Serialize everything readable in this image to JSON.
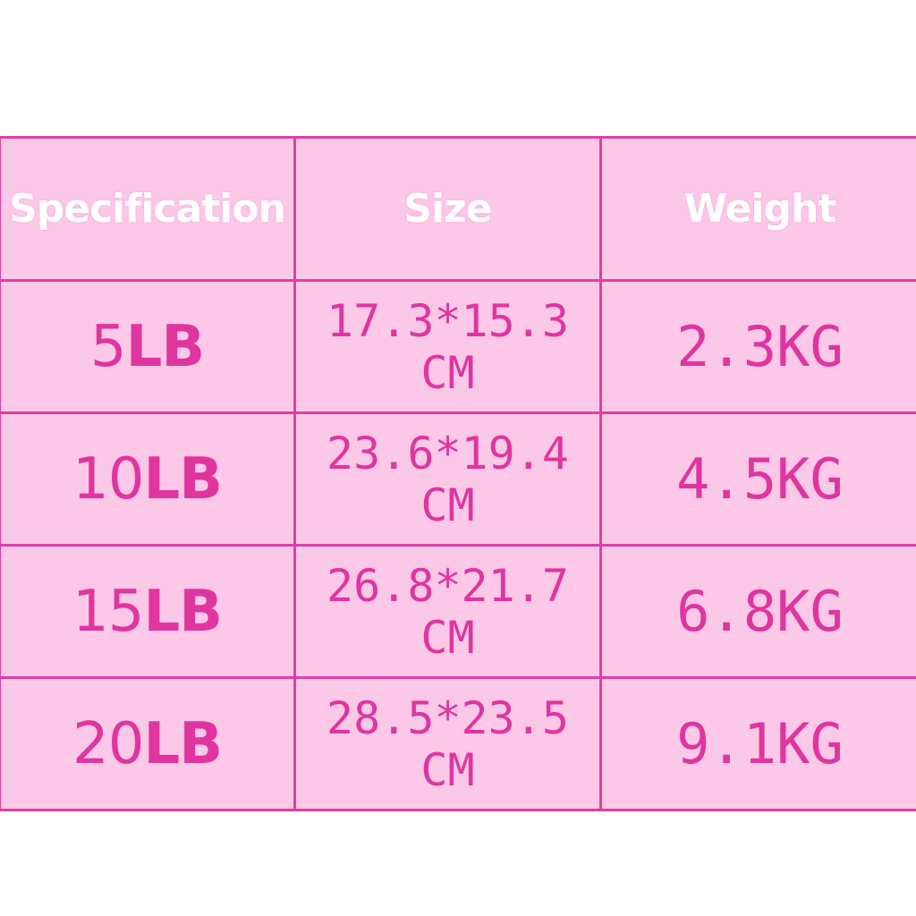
{
  "table": {
    "headers": {
      "specification": "Specification",
      "size": "Size",
      "weight": "Weight"
    },
    "rows": [
      {
        "spec_num": "5",
        "spec_unit": "LB",
        "size_dims": "17.3*15.3",
        "size_unit": "CM",
        "weight": "2.3KG"
      },
      {
        "spec_num": "10",
        "spec_unit": "LB",
        "size_dims": "23.6*19.4",
        "size_unit": "CM",
        "weight": "4.5KG"
      },
      {
        "spec_num": "15",
        "spec_unit": "LB",
        "size_dims": "26.8*21.7",
        "size_unit": "CM",
        "weight": "6.8KG"
      },
      {
        "spec_num": "20",
        "spec_unit": "LB",
        "size_dims": "28.5*23.5",
        "size_unit": "CM",
        "weight": "9.1KG"
      }
    ]
  },
  "colors": {
    "cell_background": "#fcc8e8",
    "border": "#e03fa0",
    "text": "#e0359e",
    "header_text": "#ffffff"
  }
}
